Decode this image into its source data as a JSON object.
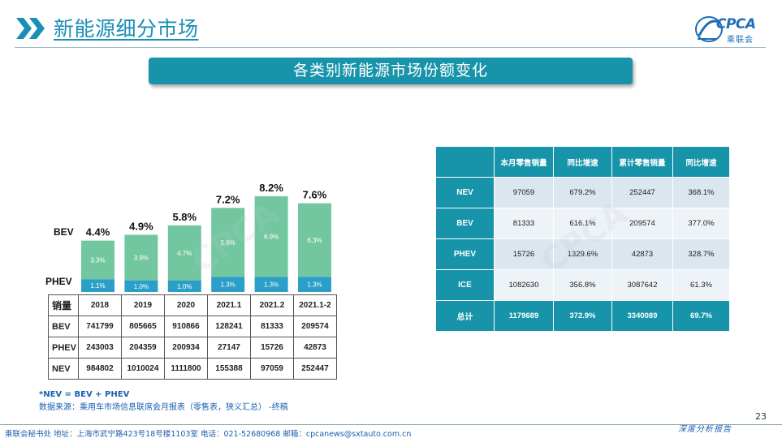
{
  "header": {
    "title": "新能源细分市场",
    "logo_text": "CPCA",
    "logo_sub": "乘联会"
  },
  "banner": {
    "title": "各类别新能源市场份额变化"
  },
  "chart_data": {
    "type": "bar",
    "stacked": true,
    "categories": [
      "2018",
      "2019",
      "2020",
      "2021.1",
      "2021.2",
      "2021.1-2"
    ],
    "series": [
      {
        "name": "PHEV",
        "values": [
          1.1,
          1.0,
          1.0,
          1.3,
          1.3,
          1.3
        ],
        "labels": [
          "1.1%",
          "1.0%",
          "1.0%",
          "1.3%",
          "1.3%",
          "1.3%"
        ],
        "color": "#2b9fc7"
      },
      {
        "name": "BEV",
        "values": [
          3.3,
          3.9,
          4.7,
          5.9,
          6.9,
          6.3
        ],
        "labels": [
          "3.3%",
          "3.9%",
          "4.7%",
          "5.9%",
          "6.9%",
          "6.3%"
        ],
        "color": "#72c7a0"
      }
    ],
    "totals": [
      "4.4%",
      "4.9%",
      "5.8%",
      "7.2%",
      "8.2%",
      "7.6%"
    ],
    "ylim": [
      0,
      9
    ],
    "legend_labels": {
      "bev": "BEV",
      "phev": "PHEV"
    }
  },
  "sales_table": {
    "row_header": "销量",
    "columns": [
      "2018",
      "2019",
      "2020",
      "2021.1",
      "2021.2",
      "2021.1-2"
    ],
    "rows": [
      {
        "label": "BEV",
        "values": [
          "741799",
          "805665",
          "910866",
          "128241",
          "81333",
          "209574"
        ]
      },
      {
        "label": "PHEV",
        "values": [
          "243003",
          "204359",
          "200934",
          "27147",
          "15726",
          "42873"
        ]
      },
      {
        "label": "NEV",
        "values": [
          "984802",
          "1010024",
          "1111800",
          "155388",
          "97059",
          "252447"
        ]
      }
    ]
  },
  "summary_table": {
    "headers": [
      "本月零售销量",
      "同比增速",
      "累计零售销量",
      "同比增速"
    ],
    "rows": [
      {
        "label": "NEV",
        "values": [
          "97059",
          "679.2%",
          "252447",
          "368.1%"
        ]
      },
      {
        "label": "BEV",
        "values": [
          "81333",
          "616.1%",
          "209574",
          "377.0%"
        ]
      },
      {
        "label": "PHEV",
        "values": [
          "15726",
          "1329.6%",
          "42873",
          "328.7%"
        ]
      },
      {
        "label": "ICE",
        "values": [
          "1082630",
          "356.8%",
          "3087642",
          "61.3%"
        ]
      },
      {
        "label": "总计",
        "values": [
          "1179689",
          "372.9%",
          "3340089",
          "69.7%"
        ]
      }
    ]
  },
  "footnotes": {
    "formula": "*NEV = BEV + PHEV",
    "source": "数据来源：乘用车市场信息联席会月报表（零售表，狭义汇总） -终稿"
  },
  "page_number": "23",
  "footer": {
    "text": "乘联会秘书处  地址：上海市武宁路423号18号楼1103室  电话：021-52680968  邮箱：cpcanews@sxtauto.com.cn",
    "right": "深度分析报告"
  }
}
